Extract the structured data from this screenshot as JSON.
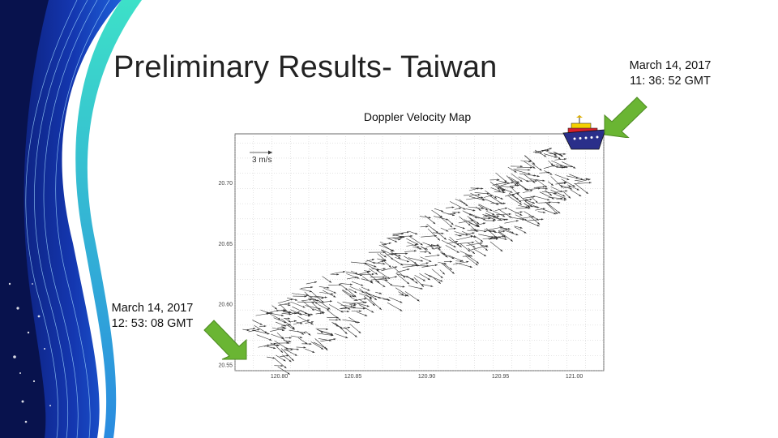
{
  "slide": {
    "title": "Preliminary Results- Taiwan",
    "map_title": "Doppler Velocity Map",
    "timestamp_end": {
      "date": "March 14, 2017",
      "time": "11: 36: 52 GMT"
    },
    "timestamp_start": {
      "date": "March 14, 2017",
      "time": "12: 53: 08 GMT"
    },
    "scale_label": "3 m/s",
    "accent_color": "#6ab533",
    "deco_colors": {
      "deep_blue": "#0b1a6e",
      "mid_blue": "#1e5fd8",
      "teal": "#3de0c8"
    },
    "icons": [
      "ship-icon",
      "arrow-right-green-icon",
      "arrow-left-green-icon"
    ]
  },
  "chart_data": {
    "type": "vector-field",
    "x_ticks": [
      "120.80",
      "120.85",
      "120.90",
      "120.95",
      "121.00"
    ],
    "y_ticks": [
      "20.70",
      "20.65",
      "20.60",
      "20.55"
    ],
    "xlim": [
      120.77,
      121.02
    ],
    "ylim": [
      20.545,
      20.74
    ],
    "track_start": [
      120.785,
      20.565
    ],
    "track_end": [
      120.995,
      20.715
    ],
    "band_halfwidth_deg": 0.025,
    "grid": true
  }
}
